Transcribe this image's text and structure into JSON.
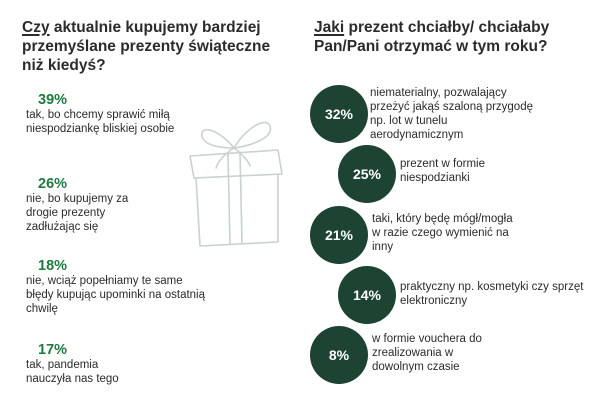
{
  "left": {
    "title_word": "Czy",
    "title_rest": " aktualnie kupujemy bardziej przemyślane prezenty świąteczne niż kiedyś?",
    "items": [
      {
        "pct": "39%",
        "text": "tak, bo chcemy sprawić miłą niespodziankę bliskiej osobie"
      },
      {
        "pct": "26%",
        "text": "nie, bo kupujemy za drogie prezenty zadłużając się"
      },
      {
        "pct": "18%",
        "text": "nie, wciąż popełniamy te same błędy kupując upominki na ostatnią chwilę"
      },
      {
        "pct": "17%",
        "text": "tak, pandemia nauczyła nas tego"
      }
    ]
  },
  "right": {
    "title_word": "Jaki",
    "title_rest": " prezent chciałby/ chciałaby Pan/Pani otrzymać w tym roku?",
    "items": [
      {
        "pct": "32%",
        "text": "niematerialny, pozwalający przeżyć jakąś szaloną przygodę np. lot w tunelu aerodynamicznym"
      },
      {
        "pct": "25%",
        "text": "prezent w formie niespodzianki"
      },
      {
        "pct": "21%",
        "text": "taki, który będę mógł/mogła w razie czego wymienić na inny"
      },
      {
        "pct": "14%",
        "text": "praktyczny np. kosmetyki czy sprzęt elektroniczny"
      },
      {
        "pct": "8%",
        "text": "w formie vouchera do zrealizowania w dowolnym czasie"
      }
    ]
  },
  "colors": {
    "accent_green": "#1f7a3f",
    "circle_dark_green": "#1d4433",
    "gift_outline": "#c9d2cc"
  },
  "chart_data": [
    {
      "type": "table",
      "title": "Czy aktualnie kupujemy bardziej przemyślane prezenty świąteczne niż kiedyś?",
      "categories": [
        "tak, bo chcemy sprawić miłą niespodziankę bliskiej osobie",
        "nie, bo kupujemy za drogie prezenty zadłużając się",
        "nie, wciąż popełniamy te same błędy kupując upominki na ostatnią chwilę",
        "tak, pandemia nauczyła nas tego"
      ],
      "values": [
        39,
        26,
        18,
        17
      ],
      "unit": "%"
    },
    {
      "type": "table",
      "title": "Jaki prezent chciałby/ chciałaby Pan/Pani otrzymać w tym roku?",
      "categories": [
        "niematerialny, pozwalający przeżyć jakąś szaloną przygodę np. lot w tunelu aerodynamicznym",
        "prezent w formie niespodzianki",
        "taki, który będę mógł/mogła w razie czego wymienić na inny",
        "praktyczny np. kosmetyki czy sprzęt elektroniczny",
        "w formie vouchera do zrealizowania w dowolnym czasie"
      ],
      "values": [
        32,
        25,
        21,
        14,
        8
      ],
      "unit": "%"
    }
  ]
}
